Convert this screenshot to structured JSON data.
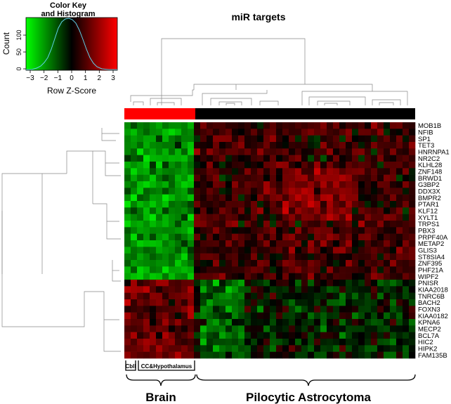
{
  "chart_data": {
    "type": "heatmap",
    "title": "miR targets",
    "color_key": {
      "title_line1": "Color Key",
      "title_line2": "and Histogram",
      "ylabel": "Count",
      "xlabel": "Row Z-Score",
      "x_ticks": [
        "−3",
        "−2",
        "−1",
        "0",
        "1",
        "2",
        "3"
      ],
      "y_ticks": [
        "0",
        "50",
        "100"
      ],
      "colors": {
        "low": "#00ff00",
        "mid": "#000000",
        "high": "#ff0000"
      }
    },
    "column_groups": [
      {
        "name": "Cbll",
        "color": "#ff0000"
      },
      {
        "name": "CC&Hypothalamus",
        "color": "#ff0000"
      },
      {
        "name": "Pilocytic Astrocytoma",
        "color": "#000000"
      }
    ],
    "brace_labels": [
      "Brain",
      "Pilocytic Astrocytoma"
    ],
    "rows": [
      "MOB1B",
      "NFIB",
      "SP1",
      "TET3",
      "HNRNPA1",
      "NR2C2",
      "KLHL28",
      "ZNF148",
      "BRWD1",
      "G3BP2",
      "DDX3X",
      "BMPR2",
      "PTAR1",
      "KLF12",
      "XYLT1",
      "TRPS1",
      "PBX3",
      "PRPF40A",
      "METAP2",
      "GLIS3",
      "ST8SIA4",
      "ZNF395",
      "PHF21A",
      "WIPF2",
      "PNISR",
      "KIAA2018",
      "TNRC6B",
      "BACH2",
      "FOXN3",
      "KIAA0182",
      "KPNA6",
      "MECP2",
      "BCL7A",
      "HIC2",
      "HIPK2",
      "FAM135B"
    ]
  }
}
